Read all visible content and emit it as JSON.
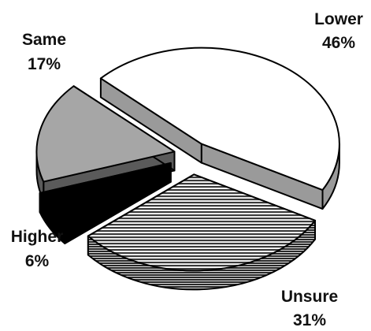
{
  "chart_data": {
    "type": "pie",
    "style": "3d-exploded",
    "slices": [
      {
        "label": "Lower",
        "value": 46,
        "value_label": "46%",
        "fill": "white",
        "side": "#9a9a9a"
      },
      {
        "label": "Unsure",
        "value": 31,
        "value_label": "31%",
        "fill": "hatched",
        "side": "hatched"
      },
      {
        "label": "Higher",
        "value": 6,
        "value_label": "6%",
        "fill": "#000000",
        "side": "#000000"
      },
      {
        "label": "Same",
        "value": 17,
        "value_label": "17%",
        "fill": "#a6a6a6",
        "side": "#5a5a5a"
      }
    ],
    "colors": {
      "outline": "#000000",
      "hatch_light": "#ffffff",
      "hatch_dark": "#3a3a3a"
    }
  }
}
